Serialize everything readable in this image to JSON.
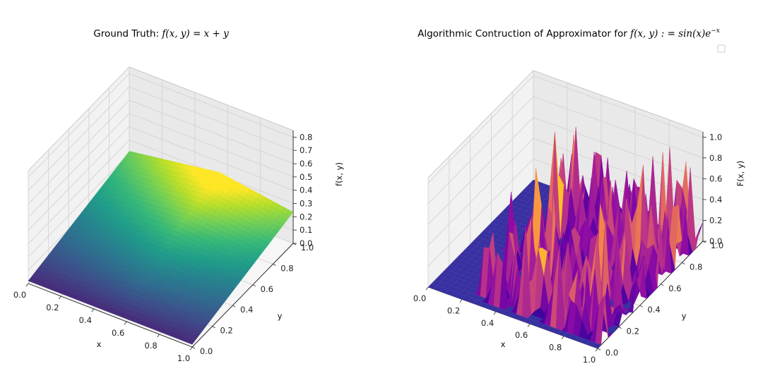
{
  "chart_data": [
    {
      "type": "surface3d",
      "title_prefix": "Ground Truth: ",
      "title_math": "f(x, y) = x + y",
      "xlabel": "x",
      "ylabel": "y",
      "zlabel": "f(x, y)",
      "xlim": [
        0,
        1
      ],
      "ylim": [
        0,
        1
      ],
      "zlim": [
        0,
        0.85
      ],
      "x_ticks": [
        "0.0",
        "0.2",
        "0.4",
        "0.6",
        "0.8",
        "1.0"
      ],
      "y_ticks": [
        "0.0",
        "0.2",
        "0.4",
        "0.6",
        "0.8",
        "1.0"
      ],
      "z_ticks": [
        "0.0",
        "0.1",
        "0.2",
        "0.3",
        "0.4",
        "0.5",
        "0.6",
        "0.7",
        "0.8"
      ],
      "colormap": "viridis",
      "grid": true
    },
    {
      "type": "surface3d",
      "title_prefix": "Algorithmic Contruction of Approximator for ",
      "title_math": "f(x, y) : = sin(x)e",
      "title_math_sup": "−x",
      "xlabel": "x",
      "ylabel": "y",
      "zlabel": "F(x, y)",
      "xlim": [
        0,
        1
      ],
      "ylim": [
        0,
        1
      ],
      "zlim": [
        0,
        1.05
      ],
      "x_ticks": [
        "0.0",
        "0.2",
        "0.4",
        "0.6",
        "0.8",
        "1.0"
      ],
      "y_ticks": [
        "0.0",
        "0.2",
        "0.4",
        "0.6",
        "0.8",
        "1.0"
      ],
      "z_ticks": [
        "0.0",
        "0.2",
        "0.4",
        "0.6",
        "0.8",
        "1.0"
      ],
      "colormap": "plasma",
      "legend": "top-right (empty)",
      "grid": true
    }
  ]
}
